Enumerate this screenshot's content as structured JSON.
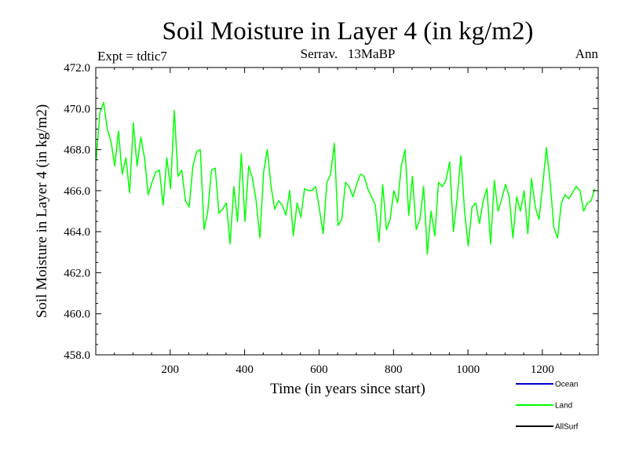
{
  "chart_data": {
    "type": "line",
    "title": "Soil Moisture in Layer 4 (in kg/m2)",
    "subtitle_left": "Expt = tdtic7",
    "subtitle_center": "Serrav.   13MaBP",
    "subtitle_right": "Ann",
    "xlabel": "Time (in years since start)",
    "ylabel": "Soil Moisture in Layer 4 (in kg/m2)",
    "xlim": [
      0,
      1350
    ],
    "ylim": [
      458.0,
      472.0
    ],
    "xticks": [
      200,
      400,
      600,
      800,
      1000,
      1200
    ],
    "xtick_labels": [
      "200",
      "400",
      "600",
      "800",
      "1000",
      "1200"
    ],
    "yticks": [
      458.0,
      460.0,
      462.0,
      464.0,
      466.0,
      468.0,
      470.0,
      472.0
    ],
    "ytick_labels": [
      "458.0",
      "460.0",
      "462.0",
      "464.0",
      "466.0",
      "468.0",
      "470.0",
      "472.0"
    ],
    "x_minor_step": 50,
    "y_minor_step": 0.5,
    "legend": [
      {
        "name": "Ocean",
        "color": "#0000cc"
      },
      {
        "name": "Land",
        "color": "#00ff00"
      },
      {
        "name": "AllSurf",
        "color": "#000000"
      }
    ],
    "series": [
      {
        "name": "Land",
        "color": "#00ff00",
        "x_start": 1,
        "x_step": 10,
        "values": [
          467.5,
          469.8,
          470.3,
          469.0,
          468.4,
          467.2,
          468.9,
          466.8,
          467.6,
          465.9,
          469.3,
          467.2,
          468.6,
          467.6,
          465.8,
          466.4,
          466.9,
          467.0,
          465.3,
          467.6,
          466.1,
          469.9,
          466.7,
          467.0,
          465.5,
          465.2,
          467.2,
          467.9,
          468.0,
          464.1,
          465.0,
          467.0,
          467.1,
          464.9,
          465.1,
          465.4,
          463.4,
          466.2,
          464.5,
          467.8,
          464.5,
          467.2,
          466.6,
          465.5,
          463.7,
          466.9,
          468.0,
          466.2,
          465.1,
          465.5,
          465.3,
          464.8,
          466.0,
          463.8,
          465.4,
          464.7,
          466.1,
          466.0,
          466.0,
          466.2,
          465.1,
          463.9,
          466.4,
          466.8,
          468.3,
          464.3,
          464.6,
          466.4,
          466.2,
          465.7,
          466.3,
          466.8,
          466.7,
          466.1,
          465.7,
          465.3,
          463.5,
          466.3,
          464.1,
          464.6,
          466.0,
          465.4,
          467.2,
          468.0,
          464.8,
          466.7,
          464.1,
          464.6,
          466.2,
          462.9,
          465.0,
          463.8,
          466.4,
          466.2,
          466.5,
          467.4,
          464.0,
          465.6,
          467.7,
          465.0,
          463.3,
          465.2,
          465.4,
          464.4,
          465.5,
          466.1,
          463.4,
          466.5,
          465.0,
          465.6,
          466.3,
          465.7,
          463.7,
          465.7,
          465.0,
          466.0,
          463.9,
          466.6,
          465.2,
          464.6,
          466.3,
          468.1,
          466.4,
          464.2,
          463.7,
          465.4,
          465.8,
          465.6,
          465.9,
          466.2,
          466.0,
          465.0,
          465.4,
          465.5,
          466.1
        ]
      }
    ]
  }
}
